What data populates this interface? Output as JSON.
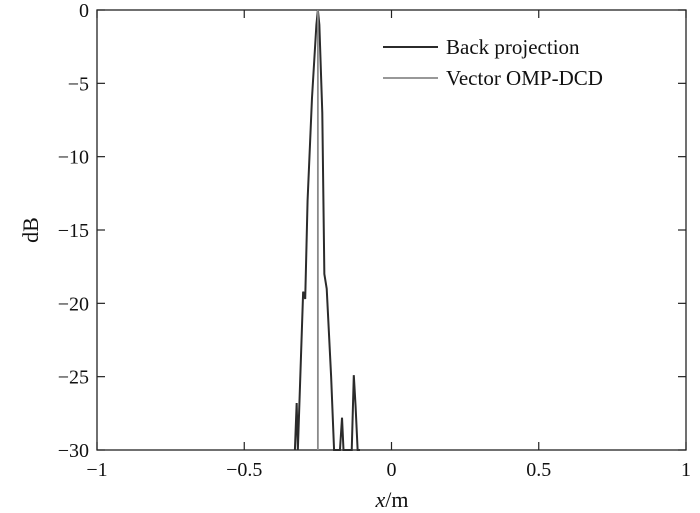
{
  "chart_data": {
    "type": "line",
    "xlabel": "x/m",
    "xlabel_var": "x",
    "xlabel_unit": "/m",
    "ylabel": "dB",
    "xlim": [
      -1,
      1
    ],
    "ylim": [
      -30,
      0
    ],
    "x_ticks": [
      -1,
      -0.5,
      0,
      0.5,
      1
    ],
    "y_ticks": [
      0,
      -5,
      -10,
      -15,
      -20,
      -25,
      -30
    ],
    "x_tick_labels": [
      "−1",
      "−0.5",
      "0",
      "0.5",
      "1"
    ],
    "y_tick_labels": [
      "0",
      "−5",
      "−10",
      "−15",
      "−20",
      "−25",
      "−30"
    ],
    "grid": false,
    "legend_position": "top-right",
    "series": [
      {
        "name": "Back projection",
        "color": "#2b2b2b",
        "x": [
          -0.328,
          -0.322,
          -0.318,
          -0.3,
          -0.293,
          -0.285,
          -0.27,
          -0.255,
          -0.25,
          -0.245,
          -0.235,
          -0.228,
          -0.22,
          -0.205,
          -0.195,
          -0.185,
          -0.175,
          -0.168,
          -0.163,
          -0.158,
          -0.152,
          -0.143,
          -0.135,
          -0.128,
          -0.122,
          -0.115,
          -0.107
        ],
        "y": [
          -30,
          -26.8,
          -30,
          -19.2,
          -19.7,
          -13,
          -6,
          -1,
          0,
          -1,
          -7,
          -18,
          -19,
          -25,
          -30,
          -30,
          -30,
          -27.8,
          -30,
          -30,
          -30,
          -30,
          -30,
          -24.9,
          -27,
          -30,
          -30
        ]
      },
      {
        "name": "Vector OMP-DCD",
        "color": "#8a8a8a",
        "x": [
          -0.25,
          -0.25,
          -0.25
        ],
        "y": [
          -30,
          0,
          -30
        ]
      }
    ]
  }
}
